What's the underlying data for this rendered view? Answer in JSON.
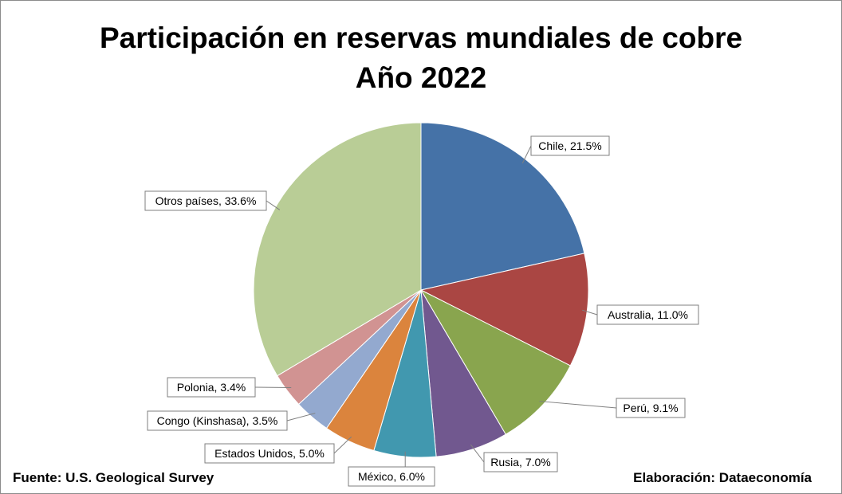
{
  "chart_data": {
    "type": "pie",
    "title": "Participación en reservas mundiales de cobre",
    "subtitle": "Año 2022",
    "slices": [
      {
        "label": "Chile",
        "value": 21.5,
        "display": "Chile, 21.5%",
        "color": "#4572A7"
      },
      {
        "label": "Australia",
        "value": 11.0,
        "display": "Australia, 11.0%",
        "color": "#AA4643"
      },
      {
        "label": "Perú",
        "value": 9.1,
        "display": "Perú, 9.1%",
        "color": "#89A54E"
      },
      {
        "label": "Rusia",
        "value": 7.0,
        "display": "Rusia, 7.0%",
        "color": "#71588F"
      },
      {
        "label": "México",
        "value": 6.0,
        "display": "México, 6.0%",
        "color": "#4198AF"
      },
      {
        "label": "Estados Unidos",
        "value": 5.0,
        "display": "Estados Unidos, 5.0%",
        "color": "#DB843D"
      },
      {
        "label": "Congo (Kinshasa)",
        "value": 3.5,
        "display": "Congo (Kinshasa), 3.5%",
        "color": "#93A9CF"
      },
      {
        "label": "Polonia",
        "value": 3.4,
        "display": "Polonia, 3.4%",
        "color": "#D19392"
      },
      {
        "label": "Otros países",
        "value": 33.6,
        "display": "Otros países, 33.6%",
        "color": "#B9CD96"
      }
    ],
    "start_angle": "12 o'clock",
    "direction": "clockwise",
    "legend": "none"
  },
  "footer": {
    "source": "Fuente: U.S. Geological Survey",
    "author": "Elaboración: Dataeconomía"
  }
}
